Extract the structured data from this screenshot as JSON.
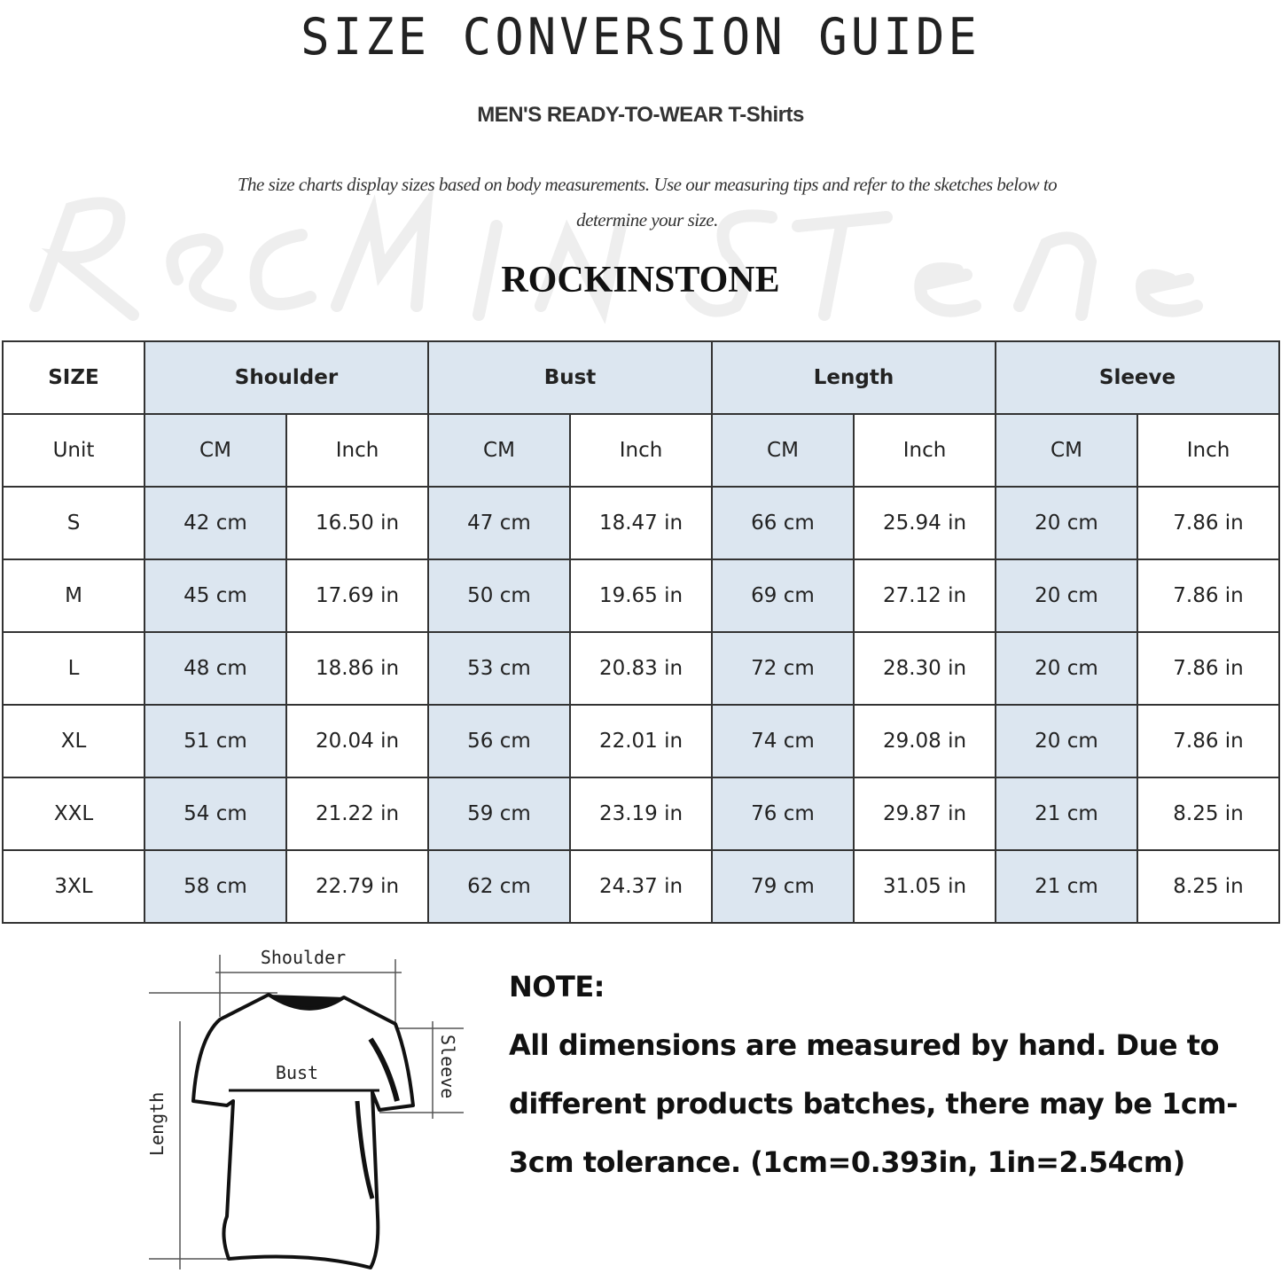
{
  "title": "SIZE CONVERSION GUIDE",
  "subtitle": "MEN'S READY-TO-WEAR T-Shirts",
  "description": "The size charts display sizes based on body measurements. Use our measuring tips and refer to the sketches below to determine your size.",
  "watermark": "RockInStone",
  "brand": "ROCKINSTONE",
  "colors": {
    "header_fill": "#dce6f0",
    "border": "#333333"
  },
  "table": {
    "size_header": "SIZE",
    "groups": [
      "Shoulder",
      "Bust",
      "Length",
      "Sleeve"
    ],
    "unit_label": "Unit",
    "units": [
      "CM",
      "Inch"
    ],
    "rows": [
      {
        "size": "S",
        "values": [
          "42 cm",
          "16.50 in",
          "47 cm",
          "18.47  in",
          "66 cm",
          "25.94  in",
          "20 cm",
          "7.86  in"
        ]
      },
      {
        "size": "M",
        "values": [
          "45 cm",
          "17.69  in",
          "50 cm",
          "19.65  in",
          "69 cm",
          "27.12  in",
          "20 cm",
          "7.86  in"
        ]
      },
      {
        "size": "L",
        "values": [
          "48 cm",
          "18.86  in",
          "53 cm",
          "20.83  in",
          "72 cm",
          "28.30  in",
          "20 cm",
          "7.86  in"
        ]
      },
      {
        "size": "XL",
        "values": [
          "51 cm",
          "20.04  in",
          "56 cm",
          "22.01  in",
          "74 cm",
          "29.08  in",
          "20 cm",
          "7.86  in"
        ]
      },
      {
        "size": "XXL",
        "values": [
          "54 cm",
          "21.22  in",
          "59 cm",
          "23.19  in",
          "76 cm",
          "29.87  in",
          "21 cm",
          "8.25  in"
        ]
      },
      {
        "size": "3XL",
        "values": [
          "58 cm",
          "22.79  in",
          "62 cm",
          "24.37  in",
          "79 cm",
          "31.05  in",
          "21 cm",
          "8.25  in"
        ]
      }
    ]
  },
  "sketch": {
    "shoulder": "Shoulder",
    "bust": "Bust",
    "sleeve": "Sleeve",
    "length": "Length"
  },
  "note": {
    "heading": "NOTE:",
    "body": "All dimensions are measured by hand. Due to different products batches, there may be 1cm-3cm tolerance. (1cm=0.393in, 1in=2.54cm)"
  }
}
